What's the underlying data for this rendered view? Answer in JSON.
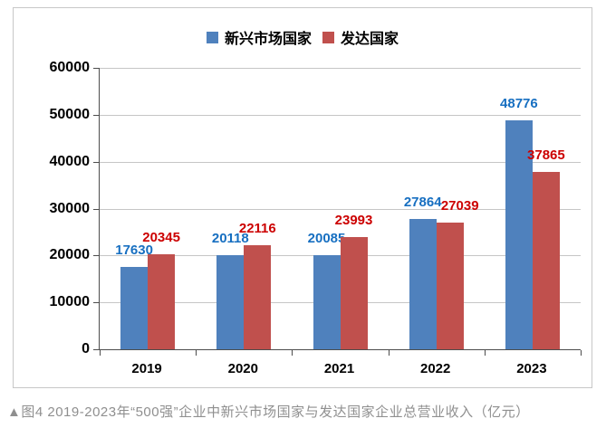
{
  "caption": "▲图4 2019-2023年“500强”企业中新兴市场国家与发达国家企业总营业收入（亿元）",
  "colors": {
    "emerging_bar": "#4f81bd",
    "developed_bar": "#c0504d",
    "emerging_label": "#176fc1",
    "developed_label": "#cc0000",
    "gridline": "#c6c6c6",
    "axis": "#4d4d4d",
    "caption_text": "#8f8f8f"
  },
  "chart_data": {
    "type": "bar",
    "title": "",
    "categories": [
      "2019",
      "2020",
      "2021",
      "2022",
      "2023"
    ],
    "series": [
      {
        "name": "新兴市场国家",
        "color": "#4f81bd",
        "label_color": "#176fc1",
        "values": [
          17630,
          20118,
          20085,
          27864,
          48776
        ]
      },
      {
        "name": "发达国家",
        "color": "#c0504d",
        "label_color": "#cc0000",
        "values": [
          20345,
          22116,
          23993,
          27039,
          37865
        ]
      }
    ],
    "ylim": [
      0,
      60000
    ],
    "ytick_step": 10000,
    "ytick_labels": [
      "0",
      "10000",
      "20000",
      "30000",
      "40000",
      "50000",
      "60000"
    ],
    "grid": true,
    "legend_position": "top",
    "data_labels": "outside-end"
  }
}
